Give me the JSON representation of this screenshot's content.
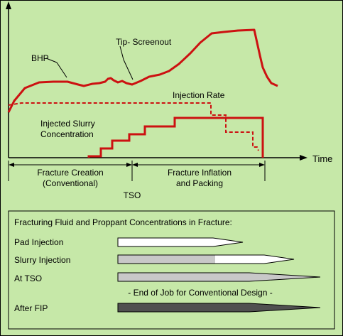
{
  "colors": {
    "panel_bg": "#c6e8a8",
    "border": "#000000",
    "plot_fill": "#c6e8a8",
    "curve": "#cc1111",
    "bar_white": "#ffffff",
    "bar_gray": "#c8c8c8",
    "bar_dark": "#505050"
  },
  "plot": {
    "labels": {
      "bhp": "BHP",
      "tip_screenout": "Tip- Screenout",
      "injection_rate": "Injection Rate",
      "slurry_line1": "Injected Slurry",
      "slurry_line2": "Concentration",
      "time_axis": "Time"
    },
    "phases": {
      "creation_line1": "Fracture Creation",
      "creation_line2": "(Conventional)",
      "inflation_line1": "Fracture Inflation",
      "inflation_line2": "and Packing",
      "tso": "TSO"
    }
  },
  "concentrations": {
    "title": "Fracturing Fluid and Proppant Concentrations in Fracture:",
    "rows": [
      {
        "label": "Pad Injection",
        "style": "white"
      },
      {
        "label": "Slurry Injection",
        "style": "gray-partial"
      },
      {
        "label": "At TSO",
        "style": "gray"
      },
      {
        "label": "After FIP",
        "style": "dark"
      }
    ],
    "note": "- End of Job for Conventional Design -"
  }
}
